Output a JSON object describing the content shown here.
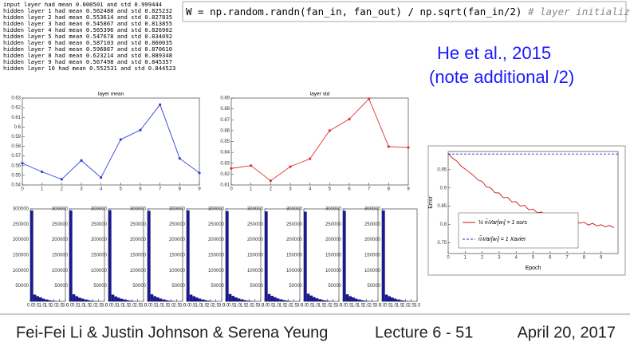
{
  "log_lines": [
    "input layer had mean 0.000501 and std 0.999444",
    "hidden layer 1 had mean 0.562488 and std 0.825232",
    "hidden layer 2 had mean 0.553614 and std 0.827835",
    "hidden layer 3 had mean 0.545867 and std 0.813855",
    "hidden layer 4 had mean 0.565396 and std 0.826902",
    "hidden layer 5 had mean 0.547678 and std 0.834092",
    "hidden layer 6 had mean 0.587103 and std 0.860035",
    "hidden layer 7 had mean 0.596867 and std 0.870610",
    "hidden layer 8 had mean 0.623214 and std 0.889348",
    "hidden layer 9 had mean 0.567498 and std 0.845357",
    "hidden layer 10 had mean 0.552531 and std 0.844523"
  ],
  "code": {
    "text": "W = np.random.randn(fan_in, fan_out) / np.sqrt(fan_in/2)",
    "comment": "# layer initialization"
  },
  "note": {
    "title": "He et al., 2015",
    "subtitle": "(note additional /2)"
  },
  "footer": {
    "authors": "Fei-Fei Li & Justin Johnson & Serena Yeung",
    "lecture": "Lecture 6 - 51",
    "date": "April 20, 2017"
  },
  "chart_data": [
    {
      "type": "line",
      "title": "layer mean",
      "x": [
        0,
        1,
        2,
        3,
        4,
        5,
        6,
        7,
        8,
        9
      ],
      "xlim": [
        0,
        9
      ],
      "xticks": [
        0,
        1,
        2,
        3,
        4,
        5,
        6,
        7,
        8,
        9
      ],
      "ylim": [
        0.54,
        0.63
      ],
      "yticks": [
        0.54,
        0.55,
        0.56,
        0.57,
        0.58,
        0.59,
        0.6,
        0.61,
        0.62,
        0.63
      ],
      "markers": true,
      "series": [
        {
          "color": "#2f3fd8",
          "values": [
            0.562488,
            0.553614,
            0.545867,
            0.565396,
            0.547678,
            0.587103,
            0.596867,
            0.623214,
            0.567498,
            0.552531
          ]
        }
      ]
    },
    {
      "type": "line",
      "title": "layer std",
      "x": [
        0,
        1,
        2,
        3,
        4,
        5,
        6,
        7,
        8,
        9
      ],
      "xlim": [
        0,
        9
      ],
      "xticks": [
        0,
        1,
        2,
        3,
        4,
        5,
        6,
        7,
        8,
        9
      ],
      "ylim": [
        0.81,
        0.89
      ],
      "yticks": [
        0.81,
        0.82,
        0.83,
        0.84,
        0.85,
        0.86,
        0.87,
        0.88,
        0.89
      ],
      "markers": true,
      "series": [
        {
          "color": "#e03030",
          "values": [
            0.825232,
            0.827835,
            0.813855,
            0.826902,
            0.834092,
            0.860035,
            0.87061,
            0.889348,
            0.845357,
            0.844523
          ]
        }
      ]
    },
    {
      "type": "histogram",
      "color": "#1a1a8c",
      "bins": [
        0,
        0.25,
        0.5,
        0.75,
        1,
        1.25,
        1.5,
        1.75,
        2,
        2.25,
        2.5,
        2.75,
        3
      ],
      "values": [
        295000,
        22000,
        17000,
        13000,
        9000,
        6000,
        4000,
        2500,
        1500,
        900,
        500,
        300
      ],
      "xlim": [
        0,
        3
      ],
      "xticks": [
        {
          "value": 0,
          "label": "0.0"
        },
        {
          "value": 0.5,
          "label": "0.5"
        },
        {
          "value": 1,
          "label": "1.0"
        },
        {
          "value": 1.5,
          "label": "1.5"
        },
        {
          "value": 2,
          "label": "2.0"
        },
        {
          "value": 2.5,
          "label": "2.5"
        },
        {
          "value": 3,
          "label": "3.0"
        }
      ],
      "ylim": [
        0,
        300000
      ],
      "yticks": [
        50000,
        100000,
        150000,
        200000,
        250000,
        300000
      ]
    },
    {
      "type": "histogram",
      "color": "#1a1a8c",
      "bins": [
        0,
        0.25,
        0.5,
        0.75,
        1,
        1.25,
        1.5,
        1.75,
        2,
        2.25,
        2.5,
        2.75,
        3
      ],
      "values": [
        295000,
        23000,
        17000,
        12000,
        9000,
        6000,
        4000,
        2500,
        1500,
        900,
        500,
        300
      ],
      "xlim": [
        0,
        3
      ],
      "xticks": [
        {
          "value": 0,
          "label": "0.0"
        },
        {
          "value": 0.5,
          "label": "0.5"
        },
        {
          "value": 1,
          "label": "1.0"
        },
        {
          "value": 1.5,
          "label": "1.5"
        },
        {
          "value": 2,
          "label": "2.0"
        },
        {
          "value": 2.5,
          "label": "2.5"
        },
        {
          "value": 3,
          "label": "3.0"
        }
      ],
      "ylim": [
        0,
        300000
      ],
      "yticks": [
        50000,
        100000,
        150000,
        200000,
        250000,
        300000
      ]
    },
    {
      "type": "histogram",
      "color": "#1a1a8c",
      "bins": [
        0,
        0.25,
        0.5,
        0.75,
        1,
        1.25,
        1.5,
        1.75,
        2,
        2.25,
        2.5,
        2.75,
        3
      ],
      "values": [
        296000,
        22000,
        16000,
        12000,
        8500,
        6000,
        4000,
        2500,
        1500,
        900,
        500,
        300
      ],
      "xlim": [
        0,
        3
      ],
      "xticks": [
        {
          "value": 0,
          "label": "0.0"
        },
        {
          "value": 0.5,
          "label": "0.5"
        },
        {
          "value": 1,
          "label": "1.0"
        },
        {
          "value": 1.5,
          "label": "1.5"
        },
        {
          "value": 2,
          "label": "2.0"
        },
        {
          "value": 2.5,
          "label": "2.5"
        },
        {
          "value": 3,
          "label": "3.0"
        }
      ],
      "ylim": [
        0,
        300000
      ],
      "yticks": [
        50000,
        100000,
        150000,
        200000,
        250000,
        300000
      ]
    },
    {
      "type": "histogram",
      "color": "#1a1a8c",
      "bins": [
        0,
        0.25,
        0.5,
        0.75,
        1,
        1.25,
        1.5,
        1.75,
        2,
        2.25,
        2.5,
        2.75,
        3
      ],
      "values": [
        294000,
        23000,
        17000,
        13000,
        9000,
        6000,
        4000,
        2500,
        1500,
        900,
        500,
        300
      ],
      "xlim": [
        0,
        3
      ],
      "xticks": [
        {
          "value": 0,
          "label": "0.0"
        },
        {
          "value": 0.5,
          "label": "0.5"
        },
        {
          "value": 1,
          "label": "1.0"
        },
        {
          "value": 1.5,
          "label": "1.5"
        },
        {
          "value": 2,
          "label": "2.0"
        },
        {
          "value": 2.5,
          "label": "2.5"
        },
        {
          "value": 3,
          "label": "3.0"
        }
      ],
      "ylim": [
        0,
        300000
      ],
      "yticks": [
        50000,
        100000,
        150000,
        200000,
        250000,
        300000
      ]
    },
    {
      "type": "histogram",
      "color": "#1a1a8c",
      "bins": [
        0,
        0.25,
        0.5,
        0.75,
        1,
        1.25,
        1.5,
        1.75,
        2,
        2.25,
        2.5,
        2.75,
        3
      ],
      "values": [
        295000,
        22000,
        17000,
        12500,
        9000,
        6000,
        4000,
        2500,
        1500,
        900,
        500,
        300
      ],
      "xlim": [
        0,
        3
      ],
      "xticks": [
        {
          "value": 0,
          "label": "0.0"
        },
        {
          "value": 0.5,
          "label": "0.5"
        },
        {
          "value": 1,
          "label": "1.0"
        },
        {
          "value": 1.5,
          "label": "1.5"
        },
        {
          "value": 2,
          "label": "2.0"
        },
        {
          "value": 2.5,
          "label": "2.5"
        },
        {
          "value": 3,
          "label": "3.0"
        }
      ],
      "ylim": [
        0,
        300000
      ],
      "yticks": [
        50000,
        100000,
        150000,
        200000,
        250000,
        300000
      ]
    },
    {
      "type": "histogram",
      "color": "#1a1a8c",
      "bins": [
        0,
        0.25,
        0.5,
        0.75,
        1,
        1.25,
        1.5,
        1.75,
        2,
        2.25,
        2.5,
        2.75,
        3
      ],
      "values": [
        293000,
        24000,
        18000,
        13000,
        9500,
        6500,
        4200,
        2700,
        1600,
        1000,
        600,
        300
      ],
      "xlim": [
        0,
        3
      ],
      "xticks": [
        {
          "value": 0,
          "label": "0.0"
        },
        {
          "value": 0.5,
          "label": "0.5"
        },
        {
          "value": 1,
          "label": "1.0"
        },
        {
          "value": 1.5,
          "label": "1.5"
        },
        {
          "value": 2,
          "label": "2.0"
        },
        {
          "value": 2.5,
          "label": "2.5"
        },
        {
          "value": 3,
          "label": "3.0"
        }
      ],
      "ylim": [
        0,
        300000
      ],
      "yticks": [
        50000,
        100000,
        150000,
        200000,
        250000,
        300000
      ]
    },
    {
      "type": "histogram",
      "color": "#1a1a8c",
      "bins": [
        0,
        0.25,
        0.5,
        0.75,
        1,
        1.25,
        1.5,
        1.75,
        2,
        2.25,
        2.5,
        2.75,
        3
      ],
      "values": [
        292000,
        24000,
        18000,
        13500,
        9500,
        6500,
        4300,
        2800,
        1700,
        1000,
        600,
        300
      ],
      "xlim": [
        0,
        3
      ],
      "xticks": [
        {
          "value": 0,
          "label": "0.0"
        },
        {
          "value": 0.5,
          "label": "0.5"
        },
        {
          "value": 1,
          "label": "1.0"
        },
        {
          "value": 1.5,
          "label": "1.5"
        },
        {
          "value": 2,
          "label": "2.0"
        },
        {
          "value": 2.5,
          "label": "2.5"
        },
        {
          "value": 3,
          "label": "3.0"
        }
      ],
      "ylim": [
        0,
        300000
      ],
      "yticks": [
        50000,
        100000,
        150000,
        200000,
        250000,
        300000
      ]
    },
    {
      "type": "histogram",
      "color": "#1a1a8c",
      "bins": [
        0,
        0.25,
        0.5,
        0.75,
        1,
        1.25,
        1.5,
        1.75,
        2,
        2.25,
        2.5,
        2.75,
        3
      ],
      "values": [
        291000,
        25000,
        19000,
        14000,
        10000,
        7000,
        4500,
        3000,
        1800,
        1100,
        600,
        300
      ],
      "xlim": [
        0,
        3
      ],
      "xticks": [
        {
          "value": 0,
          "label": "0.0"
        },
        {
          "value": 0.5,
          "label": "0.5"
        },
        {
          "value": 1,
          "label": "1.0"
        },
        {
          "value": 1.5,
          "label": "1.5"
        },
        {
          "value": 2,
          "label": "2.0"
        },
        {
          "value": 2.5,
          "label": "2.5"
        },
        {
          "value": 3,
          "label": "3.0"
        }
      ],
      "ylim": [
        0,
        300000
      ],
      "yticks": [
        50000,
        100000,
        150000,
        200000,
        250000,
        300000
      ]
    },
    {
      "type": "histogram",
      "color": "#1a1a8c",
      "bins": [
        0,
        0.25,
        0.5,
        0.75,
        1,
        1.25,
        1.5,
        1.75,
        2,
        2.25,
        2.5,
        2.75,
        3
      ],
      "values": [
        294000,
        23000,
        17000,
        13000,
        9000,
        6000,
        4000,
        2500,
        1500,
        900,
        500,
        300
      ],
      "xlim": [
        0,
        3
      ],
      "xticks": [
        {
          "value": 0,
          "label": "0.0"
        },
        {
          "value": 0.5,
          "label": "0.5"
        },
        {
          "value": 1,
          "label": "1.0"
        },
        {
          "value": 1.5,
          "label": "1.5"
        },
        {
          "value": 2,
          "label": "2.0"
        },
        {
          "value": 2.5,
          "label": "2.5"
        },
        {
          "value": 3,
          "label": "3.0"
        }
      ],
      "ylim": [
        0,
        300000
      ],
      "yticks": [
        50000,
        100000,
        150000,
        200000,
        250000,
        300000
      ]
    },
    {
      "type": "histogram",
      "color": "#1a1a8c",
      "bins": [
        0,
        0.25,
        0.5,
        0.75,
        1,
        1.25,
        1.5,
        1.75,
        2,
        2.25,
        2.5,
        2.75,
        3
      ],
      "values": [
        295000,
        22000,
        17000,
        12500,
        9000,
        6000,
        4000,
        2500,
        1500,
        900,
        500,
        300
      ],
      "xlim": [
        0,
        3
      ],
      "xticks": [
        {
          "value": 0,
          "label": "0.0"
        },
        {
          "value": 0.5,
          "label": "0.5"
        },
        {
          "value": 1,
          "label": "1.0"
        },
        {
          "value": 1.5,
          "label": "1.5"
        },
        {
          "value": 2,
          "label": "2.0"
        },
        {
          "value": 2.5,
          "label": "2.5"
        },
        {
          "value": 3,
          "label": "3.0"
        }
      ],
      "ylim": [
        0,
        300000
      ],
      "yticks": [
        50000,
        100000,
        150000,
        200000,
        250000,
        300000
      ]
    },
    {
      "type": "line",
      "xlabel": "Epoch",
      "ylabel": "Error",
      "xlim": [
        0,
        10
      ],
      "xticks": [
        0,
        1,
        2,
        3,
        4,
        5,
        6,
        7,
        8,
        9
      ],
      "ylim": [
        0.72,
        1.0
      ],
      "yticks": [
        0.75,
        0.8,
        0.85,
        0.9,
        0.95
      ],
      "markers": false,
      "series": [
        {
          "name": "½ n̂ₗVar[wₗ] = 1  ours",
          "color": "#cc1111",
          "x": [
            0,
            0.25,
            0.5,
            0.75,
            1,
            1.25,
            1.5,
            1.75,
            2,
            2.25,
            2.5,
            2.75,
            3,
            3.25,
            3.5,
            3.75,
            4,
            4.25,
            4.5,
            4.75,
            5,
            5.25,
            5.5,
            5.75,
            6,
            6.25,
            6.5,
            6.75,
            7,
            7.25,
            7.5,
            7.75,
            8,
            8.25,
            8.5,
            8.75,
            9,
            9.25,
            9.5,
            9.75
          ],
          "values": [
            0.995,
            0.982,
            0.974,
            0.96,
            0.952,
            0.943,
            0.934,
            0.922,
            0.918,
            0.903,
            0.9,
            0.887,
            0.886,
            0.873,
            0.874,
            0.862,
            0.862,
            0.85,
            0.852,
            0.84,
            0.842,
            0.832,
            0.834,
            0.825,
            0.827,
            0.818,
            0.82,
            0.812,
            0.814,
            0.807,
            0.81,
            0.803,
            0.806,
            0.798,
            0.803,
            0.796,
            0.799,
            0.793,
            0.797,
            0.791
          ]
        },
        {
          "name": "n̂ₗVar[wₗ] = 1  Xavier",
          "color": "#2233cc",
          "dash": true,
          "x": [
            0,
            10
          ],
          "values": [
            0.993,
            0.993
          ]
        }
      ]
    }
  ]
}
